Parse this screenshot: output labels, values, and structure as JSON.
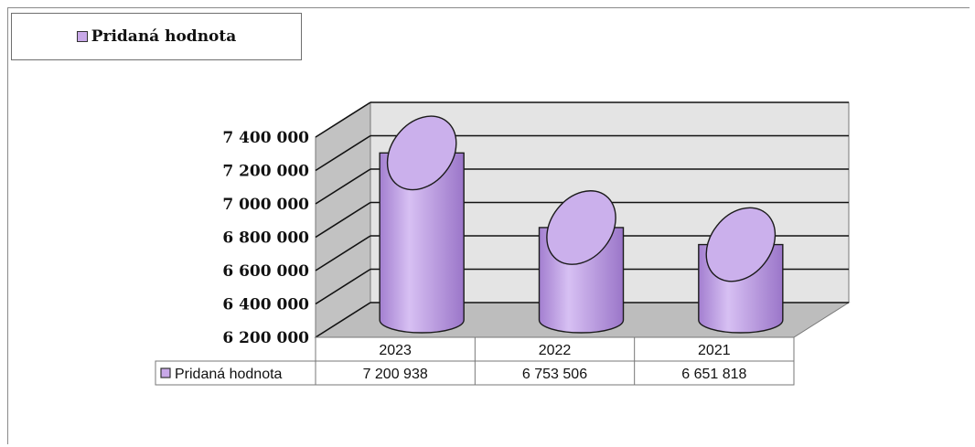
{
  "chart_data": {
    "type": "bar",
    "style": "3d-cylinder",
    "title": "",
    "legend": {
      "placement": "top-left",
      "entries": [
        "Pridaná hodnota"
      ]
    },
    "categories": [
      "2023",
      "2022",
      "2021"
    ],
    "series": [
      {
        "name": "Pridaná hodnota",
        "values": [
          7200938,
          6753506,
          6651818
        ],
        "color": "#c8a8e8"
      }
    ],
    "value_labels": [
      "7 200 938",
      "6 753 506",
      "6 651 818"
    ],
    "y_tick_labels": [
      "7 400 000",
      "7 200 000",
      "7 000 000",
      "6 800 000",
      "6 600 000",
      "6 400 000",
      "6 200 000"
    ],
    "y_ticks": [
      7400000,
      7200000,
      7000000,
      6800000,
      6600000,
      6400000,
      6200000
    ],
    "ylim": [
      6200000,
      7400000
    ],
    "grid": true,
    "data_table": true
  }
}
